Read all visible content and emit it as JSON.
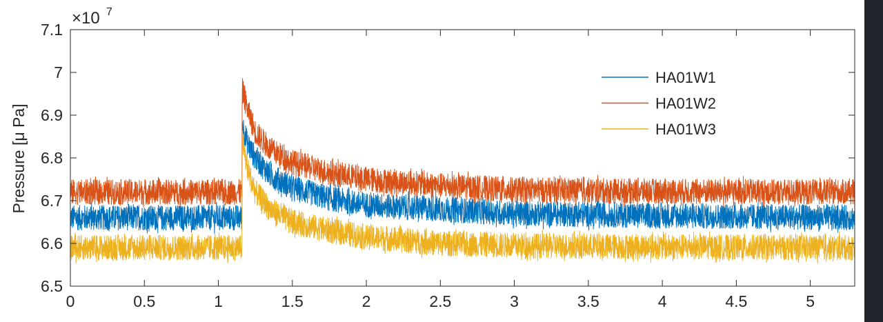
{
  "chart_data": {
    "type": "line",
    "title": "",
    "xlabel": "",
    "ylabel": "Pressure [μ Pa]",
    "y_exponent_label": "×10",
    "y_exponent": "7",
    "xlim": [
      0,
      5.3
    ],
    "ylim": [
      6.5,
      7.1
    ],
    "xticks": [
      "0",
      "0.5",
      "1",
      "1.5",
      "2",
      "2.5",
      "3",
      "3.5",
      "4",
      "4.5",
      "5"
    ],
    "xtick_values": [
      0,
      0.5,
      1,
      1.5,
      2,
      2.5,
      3,
      3.5,
      4,
      4.5,
      5
    ],
    "yticks": [
      "6.5",
      "6.6",
      "6.7",
      "6.8",
      "6.9",
      "7",
      "7.1"
    ],
    "ytick_values": [
      6.5,
      6.6,
      6.7,
      6.8,
      6.9,
      7.0,
      7.1
    ],
    "grid": false,
    "legend_position": "top-right",
    "noise_halfwidth": 0.03,
    "x": [
      0,
      1.16,
      1.161,
      1.2,
      1.25,
      1.35,
      1.5,
      1.75,
      2,
      2.5,
      3,
      4,
      5.3
    ],
    "series": [
      {
        "name": "HA01W1",
        "color": "#0072BD",
        "values": [
          6.66,
          6.66,
          6.88,
          6.83,
          6.8,
          6.76,
          6.73,
          6.705,
          6.69,
          6.68,
          6.67,
          6.665,
          6.66
        ]
      },
      {
        "name": "HA01W2",
        "color": "#D95319",
        "values": [
          6.72,
          6.72,
          6.96,
          6.91,
          6.86,
          6.82,
          6.79,
          6.765,
          6.75,
          6.735,
          6.725,
          6.722,
          6.72
        ]
      },
      {
        "name": "HA01W3",
        "color": "#EDB120",
        "values": [
          6.59,
          6.59,
          6.84,
          6.77,
          6.72,
          6.68,
          6.65,
          6.63,
          6.615,
          6.6,
          6.595,
          6.592,
          6.59
        ]
      }
    ]
  }
}
